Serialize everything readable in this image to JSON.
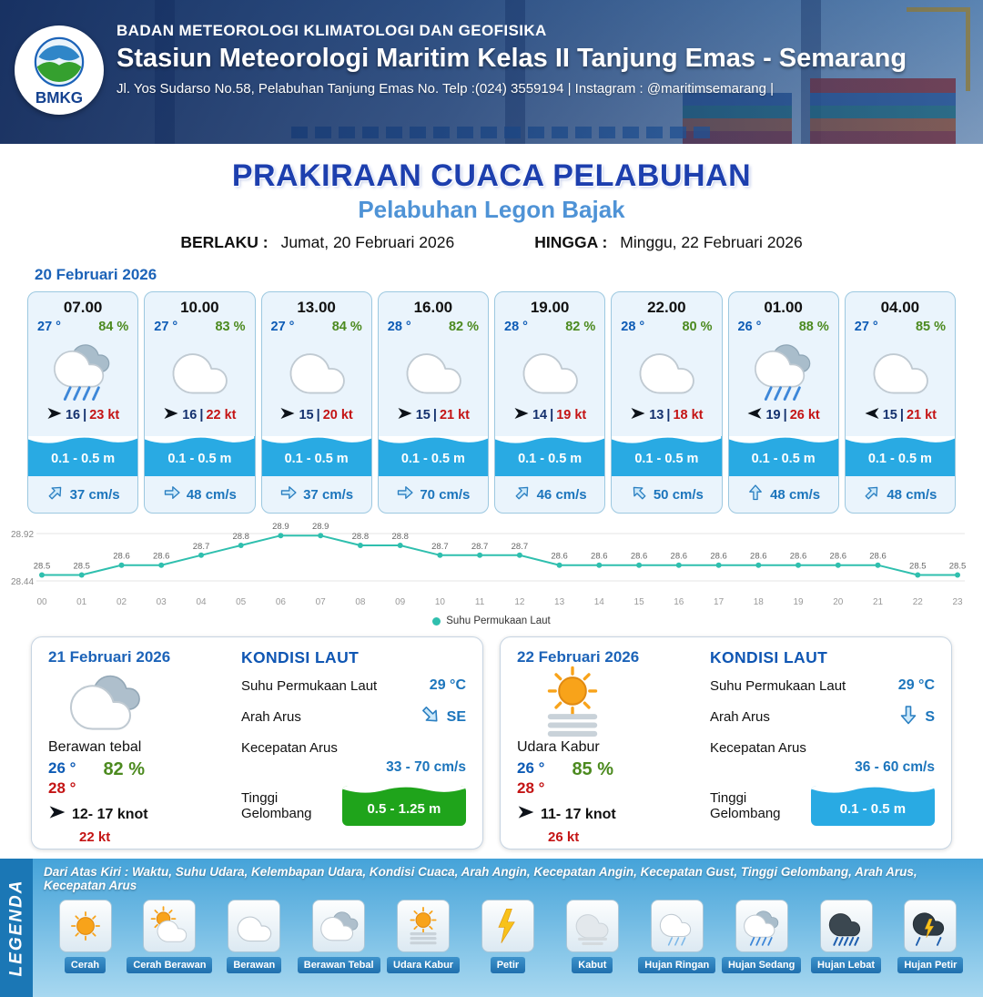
{
  "header": {
    "logo_text": "BMKG",
    "agency": "BADAN METEOROLOGI KLIMATOLOGI DAN GEOFISIKA",
    "station": "Stasiun Meteorologi Maritim Kelas II Tanjung Emas - Semarang",
    "address": "Jl. Yos Sudarso No.58, Pelabuhan Tanjung Emas No. Telp :(024) 3559194 | Instagram : @maritimsemarang |"
  },
  "title": {
    "main": "PRAKIRAAN CUACA PELABUHAN",
    "subtitle": "Pelabuhan Legon Bajak",
    "valid_label": "BERLAKU :",
    "valid_value": "Jumat, 20 Februari 2026",
    "until_label": "HINGGA :",
    "until_value": "Minggu, 22 Februari 2026"
  },
  "forecast_date": "20 Februari 2026",
  "forecast_cards": [
    {
      "time": "07.00",
      "temp": "27 °",
      "humidity": "84 %",
      "icon": "hujan-sedang",
      "wind_speed": "16",
      "gust": "23 kt",
      "wave": "0.1 - 0.5 m",
      "current": "37 cm/s",
      "wind_rot": 0,
      "current_rot": -45
    },
    {
      "time": "10.00",
      "temp": "27 °",
      "humidity": "83 %",
      "icon": "berawan",
      "wind_speed": "16",
      "gust": "22 kt",
      "wave": "0.1 - 0.5 m",
      "current": "48 cm/s",
      "wind_rot": 0,
      "current_rot": 0
    },
    {
      "time": "13.00",
      "temp": "27 °",
      "humidity": "84 %",
      "icon": "berawan",
      "wind_speed": "15",
      "gust": "20 kt",
      "wave": "0.1 - 0.5 m",
      "current": "37 cm/s",
      "wind_rot": 0,
      "current_rot": 0
    },
    {
      "time": "16.00",
      "temp": "28 °",
      "humidity": "82 %",
      "icon": "berawan",
      "wind_speed": "15",
      "gust": "21 kt",
      "wave": "0.1 - 0.5 m",
      "current": "70 cm/s",
      "wind_rot": 0,
      "current_rot": 0
    },
    {
      "time": "19.00",
      "temp": "28 °",
      "humidity": "82 %",
      "icon": "berawan",
      "wind_speed": "14",
      "gust": "19 kt",
      "wave": "0.1 - 0.5 m",
      "current": "46 cm/s",
      "wind_rot": 0,
      "current_rot": -45
    },
    {
      "time": "22.00",
      "temp": "28 °",
      "humidity": "80 %",
      "icon": "berawan",
      "wind_speed": "13",
      "gust": "18 kt",
      "wave": "0.1 - 0.5 m",
      "current": "50 cm/s",
      "wind_rot": 0,
      "current_rot": -135
    },
    {
      "time": "01.00",
      "temp": "26 °",
      "humidity": "88 %",
      "icon": "hujan-sedang",
      "wind_speed": "19",
      "gust": "26 kt",
      "wave": "0.1 - 0.5 m",
      "current": "48 cm/s",
      "wind_rot": 180,
      "current_rot": -90
    },
    {
      "time": "04.00",
      "temp": "27 °",
      "humidity": "85 %",
      "icon": "berawan",
      "wind_speed": "15",
      "gust": "21 kt",
      "wave": "0.1 - 0.5 m",
      "current": "48 cm/s",
      "wind_rot": 180,
      "current_rot": -45
    }
  ],
  "chart_data": {
    "type": "line",
    "series_name": "Suhu Permukaan Laut",
    "x": [
      "00",
      "01",
      "02",
      "03",
      "04",
      "05",
      "06",
      "07",
      "08",
      "09",
      "10",
      "11",
      "12",
      "13",
      "14",
      "15",
      "16",
      "17",
      "18",
      "19",
      "20",
      "21",
      "22",
      "23"
    ],
    "values": [
      28.5,
      28.5,
      28.6,
      28.6,
      28.7,
      28.8,
      28.9,
      28.9,
      28.8,
      28.8,
      28.7,
      28.7,
      28.7,
      28.6,
      28.6,
      28.6,
      28.6,
      28.6,
      28.6,
      28.6,
      28.6,
      28.6,
      28.5,
      28.5
    ],
    "ylim": [
      28.44,
      28.92
    ],
    "line_color": "#2fbfae",
    "legend_position": "bottom",
    "grid": true
  },
  "day_cards": [
    {
      "date": "21 Februari 2026",
      "icon": "berawan-tebal",
      "condition": "Berawan tebal",
      "temp_min": "26 °",
      "temp_max": "28 °",
      "humidity": "82 %",
      "wind": "12- 17 knot",
      "gust": "22 kt",
      "sea": {
        "title": "KONDISI LAUT",
        "sst_label": "Suhu Permukaan Laut",
        "sst_value": "29 °C",
        "dir_label": "Arah Arus",
        "dir_value": "SE",
        "dir_rot": 45,
        "speed_label": "Kecepatan Arus",
        "speed_value": "33 - 70 cm/s",
        "wave_label": "Tinggi Gelombang",
        "wave_value": "0.5 - 1.25 m",
        "wave_color": "#1fa41b"
      }
    },
    {
      "date": "22 Februari 2026",
      "icon": "udara-kabur",
      "condition": "Udara Kabur",
      "temp_min": "26 °",
      "temp_max": "28 °",
      "humidity": "85 %",
      "wind": "11- 17 knot",
      "gust": "26 kt",
      "sea": {
        "title": "KONDISI LAUT",
        "sst_label": "Suhu Permukaan Laut",
        "sst_value": "29 °C",
        "dir_label": "Arah Arus",
        "dir_value": "S",
        "dir_rot": 90,
        "speed_label": "Kecepatan Arus",
        "speed_value": "36 - 60 cm/s",
        "wave_label": "Tinggi Gelombang",
        "wave_value": "0.1 - 0.5 m",
        "wave_color": "#29aae3"
      }
    }
  ],
  "legend": {
    "label": "LEGENDA",
    "description": "Dari Atas Kiri : Waktu, Suhu Udara, Kelembapan Udara, Kondisi Cuaca, Arah Angin, Kecepatan Angin, Kecepatan Gust, Tinggi Gelombang, Arah Arus, Kecepatan Arus",
    "items": [
      {
        "label": "Cerah",
        "icon": "cerah"
      },
      {
        "label": "Cerah Berawan",
        "icon": "cerah-berawan"
      },
      {
        "label": "Berawan",
        "icon": "berawan"
      },
      {
        "label": "Berawan Tebal",
        "icon": "berawan-tebal"
      },
      {
        "label": "Udara Kabur",
        "icon": "udara-kabur"
      },
      {
        "label": "Petir",
        "icon": "petir"
      },
      {
        "label": "Kabut",
        "icon": "kabut"
      },
      {
        "label": "Hujan Ringan",
        "icon": "hujan-ringan"
      },
      {
        "label": "Hujan Sedang",
        "icon": "hujan-sedang"
      },
      {
        "label": "Hujan Lebat",
        "icon": "hujan-lebat"
      },
      {
        "label": "Hujan Petir",
        "icon": "hujan-petir"
      }
    ]
  }
}
